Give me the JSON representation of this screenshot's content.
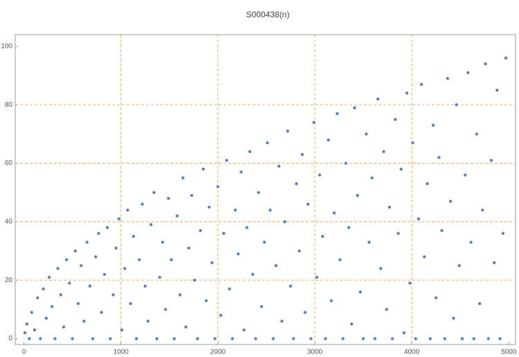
{
  "chart_data": {
    "type": "scatter",
    "title": "S000438(n)",
    "x": [
      10,
      30,
      55,
      80,
      110,
      140,
      170,
      200,
      230,
      260,
      290,
      320,
      350,
      380,
      410,
      440,
      470,
      500,
      530,
      560,
      590,
      620,
      650,
      680,
      710,
      740,
      770,
      800,
      830,
      860,
      890,
      920,
      950,
      980,
      1010,
      1040,
      1070,
      1100,
      1130,
      1160,
      1190,
      1220,
      1250,
      1280,
      1310,
      1340,
      1370,
      1400,
      1430,
      1460,
      1490,
      1520,
      1550,
      1580,
      1610,
      1640,
      1670,
      1700,
      1730,
      1760,
      1790,
      1820,
      1850,
      1880,
      1910,
      1940,
      1970,
      2000,
      2030,
      2060,
      2090,
      2120,
      2150,
      2180,
      2210,
      2240,
      2270,
      2300,
      2330,
      2360,
      2390,
      2420,
      2450,
      2480,
      2510,
      2540,
      2570,
      2600,
      2630,
      2660,
      2690,
      2720,
      2750,
      2780,
      2810,
      2840,
      2870,
      2900,
      2930,
      2960,
      2990,
      3020,
      3050,
      3080,
      3110,
      3140,
      3170,
      3200,
      3230,
      3260,
      3290,
      3320,
      3350,
      3380,
      3410,
      3440,
      3470,
      3500,
      3530,
      3560,
      3590,
      3620,
      3650,
      3680,
      3710,
      3740,
      3770,
      3800,
      3830,
      3860,
      3890,
      3920,
      3950,
      3980,
      4010,
      4040,
      4070,
      4100,
      4130,
      4160,
      4190,
      4220,
      4250,
      4280,
      4310,
      4340,
      4370,
      4400,
      4430,
      4460,
      4490,
      4520,
      4550,
      4580,
      4610,
      4640,
      4670,
      4700,
      4730,
      4760,
      4790,
      4820,
      4850,
      4880,
      4910,
      4940,
      4970
    ],
    "values": [
      2,
      5,
      0,
      9,
      3,
      14,
      0,
      17,
      7,
      21,
      11,
      0,
      24,
      15,
      4,
      27,
      19,
      0,
      30,
      12,
      25,
      6,
      33,
      18,
      0,
      28,
      36,
      9,
      22,
      38,
      0,
      15,
      31,
      41,
      3,
      24,
      44,
      12,
      35,
      0,
      27,
      46,
      18,
      6,
      39,
      50,
      0,
      21,
      33,
      10,
      48,
      27,
      0,
      42,
      15,
      55,
      4,
      31,
      49,
      20,
      0,
      37,
      58,
      13,
      45,
      26,
      0,
      52,
      8,
      36,
      61,
      17,
      0,
      44,
      29,
      57,
      3,
      38,
      64,
      22,
      0,
      50,
      11,
      33,
      67,
      44,
      0,
      25,
      59,
      6,
      40,
      71,
      18,
      0,
      53,
      30,
      63,
      9,
      46,
      0,
      74,
      21,
      56,
      35,
      0,
      68,
      13,
      43,
      77,
      27,
      0,
      60,
      38,
      5,
      79,
      49,
      16,
      0,
      70,
      33,
      55,
      0,
      82,
      24,
      64,
      10,
      45,
      0,
      75,
      36,
      58,
      2,
      84,
      19,
      67,
      0,
      41,
      87,
      28,
      53,
      0,
      73,
      14,
      62,
      37,
      0,
      89,
      47,
      7,
      80,
      25,
      0,
      56,
      91,
      33,
      0,
      70,
      12,
      44,
      94,
      0,
      61,
      26,
      85,
      0,
      36,
      96
    ],
    "color": "#5e81b5",
    "xlim": [
      -90,
      5070
    ],
    "ylim": [
      -2,
      104
    ],
    "xticks": [
      0,
      1000,
      2000,
      3000,
      4000,
      5000
    ],
    "yticks": [
      0,
      20,
      40,
      60,
      80,
      100
    ],
    "grid": true,
    "grid_color": "#e8a33b",
    "gridlines": {
      "x": [
        1000,
        2000,
        3000,
        4000
      ],
      "y": [
        20,
        40,
        60,
        80
      ]
    }
  }
}
